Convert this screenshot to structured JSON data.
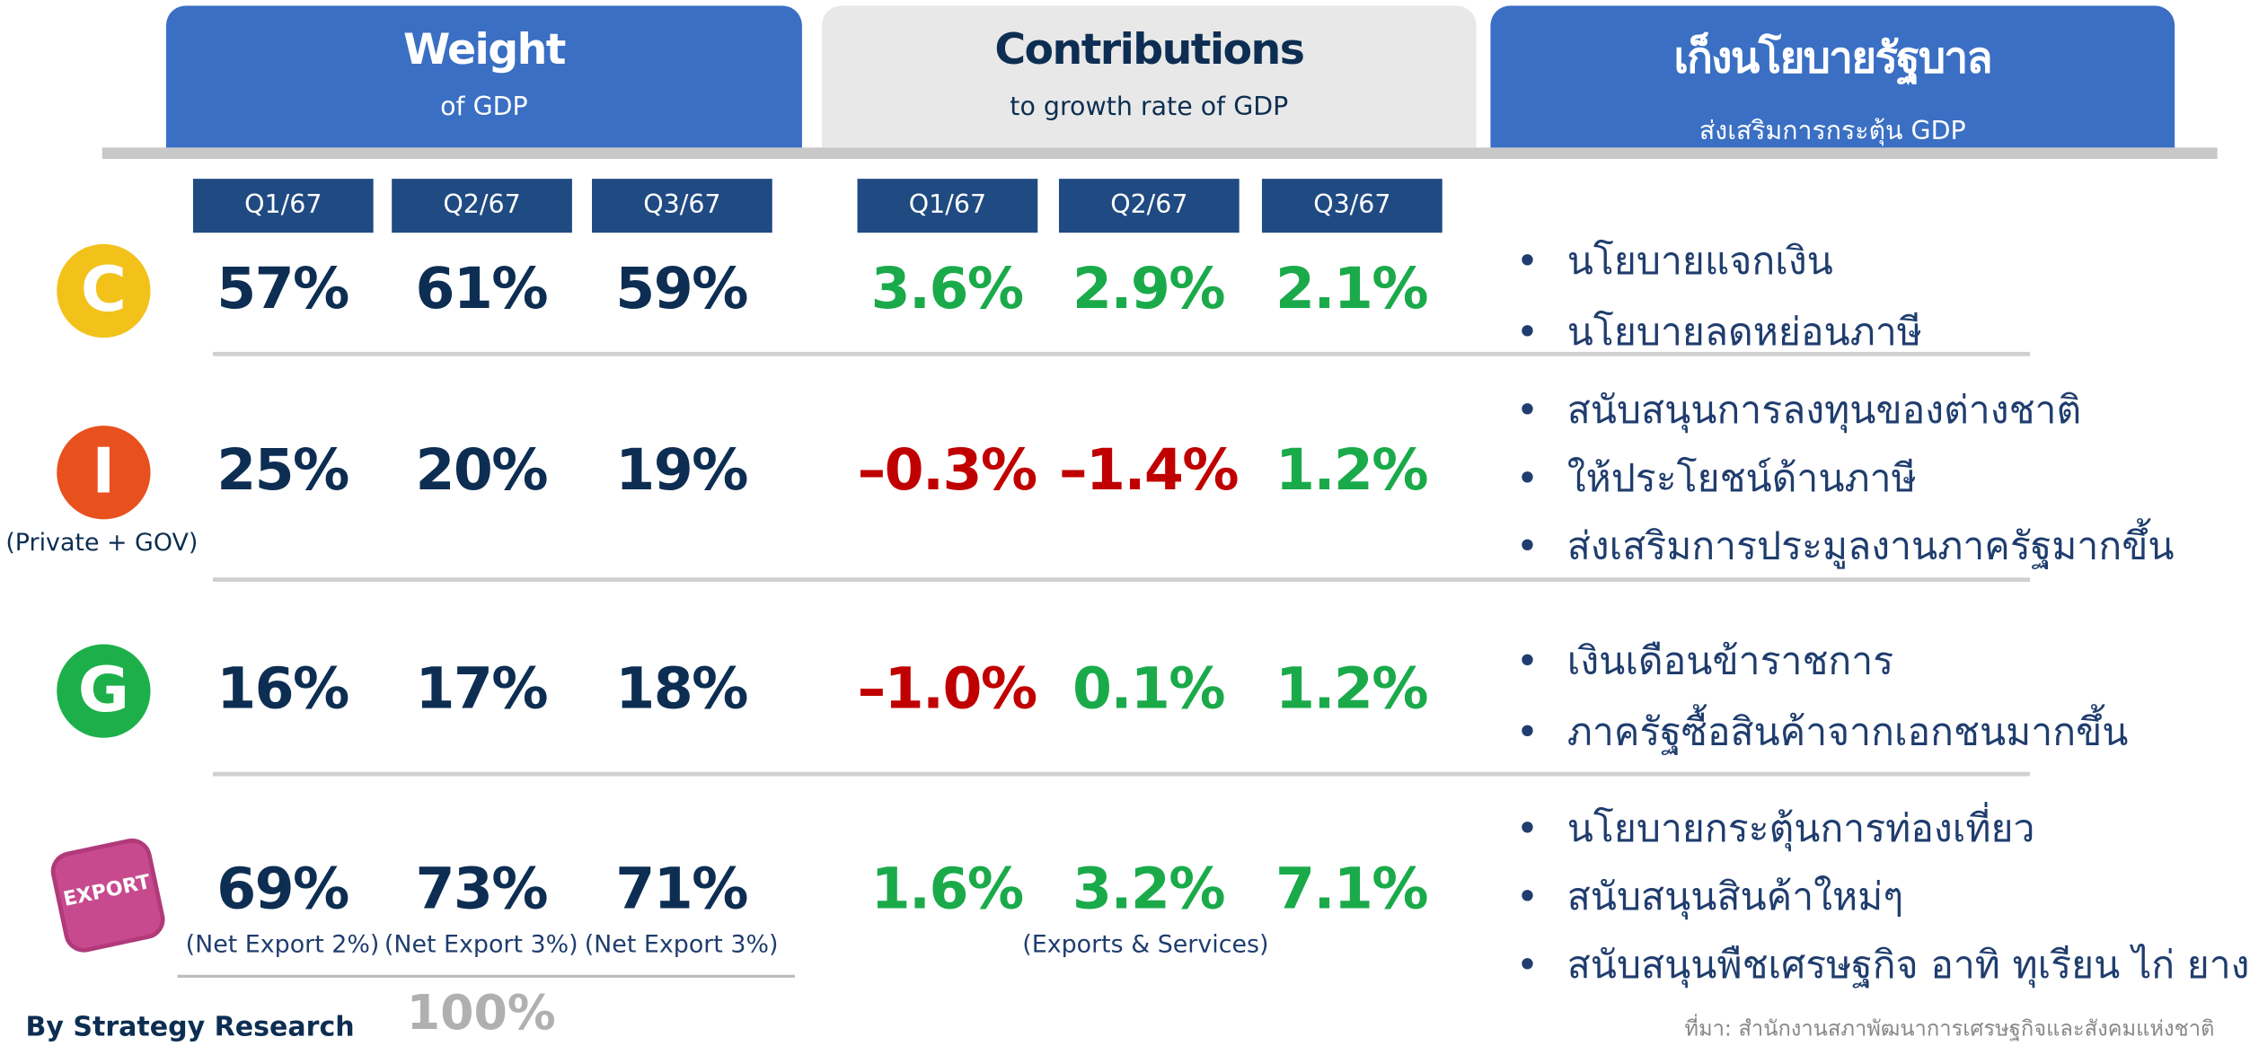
{
  "headers": [
    {
      "title": "Weight",
      "subtitle": "of GDP"
    },
    {
      "title": "Contributions",
      "subtitle": "to growth rate of GDP"
    },
    {
      "title": "เก็งนโยบายรัฐบาล",
      "subtitle": "ส่งเสริมการกระตุ้น GDP"
    }
  ],
  "weight_quarters": [
    "Q1/67",
    "Q2/67",
    "Q3/67"
  ],
  "contribution_quarters": [
    "Q1/67",
    "Q2/67",
    "Q3/67"
  ],
  "rows": [
    {
      "icon": "C",
      "weights": [
        "57%",
        "61%",
        "59%"
      ],
      "contributions": [
        "3.6%",
        "2.9%",
        "2.1%"
      ],
      "policies": [
        "นโยบายแจกเงิน",
        "นโยบายลดหย่อนภาษี"
      ]
    },
    {
      "icon": "I",
      "icon_note": "(Private + GOV)",
      "weights": [
        "25%",
        "20%",
        "19%"
      ],
      "contributions": [
        "–0.3%",
        "–1.4%",
        "1.2%"
      ],
      "policies": [
        "สนับสนุนการลงทุนของต่างชาติ",
        "ให้ประโยชน์ด้านภาษี",
        "ส่งเสริมการประมูลงานภาครัฐมากขึ้น"
      ]
    },
    {
      "icon": "G",
      "weights": [
        "16%",
        "17%",
        "18%"
      ],
      "contributions": [
        "–1.0%",
        "0.1%",
        "1.2%"
      ],
      "policies": [
        "เงินเดือนข้าราชการ",
        "ภาครัฐซื้อสินค้าจากเอกชนมากขึ้น"
      ]
    },
    {
      "icon": "EXPORT",
      "weights": [
        "69%",
        "73%",
        "71%"
      ],
      "weight_notes": [
        "(Net Export 2%)",
        "(Net Export 3%)",
        "(Net Export 3%)"
      ],
      "contributions": [
        "1.6%",
        "3.2%",
        "7.1%"
      ],
      "contribution_note": "(Exports & Services)",
      "policies": [
        "นโยบายกระตุ้นการท่องเที่ยว",
        "สนับสนุนสินค้าใหม่ๆ",
        "สนับสนุนพืชเศรษฐกิจ อาทิ ทุเรียน ไก่ ยาง"
      ]
    }
  ],
  "total": "100%",
  "footer": {
    "author": "By Strategy Research",
    "source": "ที่มา: สำนักงานสภาพัฒนาการเศรษฐกิจและสังคมแห่งชาติ"
  }
}
